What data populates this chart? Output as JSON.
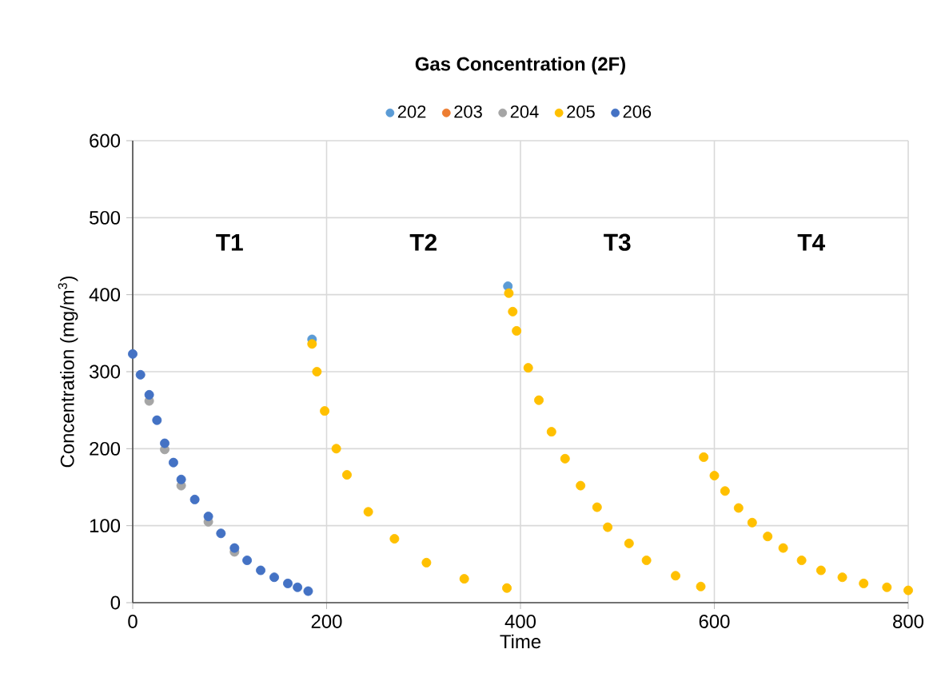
{
  "chart_data": {
    "type": "scatter",
    "title": "Gas Concentration (2F)",
    "xlabel": "Time",
    "ylabel": "Concentration (mg/m$^{3}$)",
    "xlim": [
      0,
      800
    ],
    "xticks": [
      0,
      200,
      400,
      600,
      800
    ],
    "ylim": [
      0,
      600
    ],
    "yticks": [
      0,
      100,
      200,
      300,
      400,
      500,
      600
    ],
    "grid": true,
    "legend": "top",
    "marker": "circle",
    "annotations": [
      "T1",
      "T2",
      "T3",
      "T4"
    ],
    "series": [
      {
        "name": "202",
        "color": "#5b9bd5",
        "x": [
          185,
          387
        ],
        "values": [
          342,
          411
        ]
      },
      {
        "name": "203",
        "color": "#ed7d31"
      },
      {
        "name": "204",
        "color": "#a5a5a5",
        "x": [
          17,
          33,
          50,
          78,
          105
        ],
        "values": [
          262,
          199,
          152,
          105,
          66
        ]
      },
      {
        "name": "205",
        "color": "#ffc000",
        "x": [
          185,
          190,
          198,
          210,
          221,
          243,
          270,
          303,
          342,
          386,
          388,
          392,
          396,
          408,
          419,
          432,
          446,
          462,
          479,
          490,
          512,
          530,
          560,
          586,
          589,
          600,
          611,
          625,
          639,
          655,
          671,
          690,
          710,
          732,
          754,
          778,
          800
        ],
        "values": [
          336,
          300,
          249,
          200,
          166,
          118,
          83,
          52,
          31,
          19,
          402,
          378,
          353,
          305,
          263,
          222,
          187,
          152,
          124,
          98,
          77,
          55,
          35,
          21,
          189,
          165,
          145,
          123,
          104,
          86,
          71,
          55,
          42,
          33,
          25,
          20,
          16
        ]
      },
      {
        "name": "206",
        "color": "#4472c4",
        "x": [
          0,
          8,
          17,
          25,
          33,
          42,
          50,
          64,
          78,
          91,
          105,
          118,
          132,
          146,
          160,
          170,
          181
        ],
        "values": [
          323,
          296,
          270,
          237,
          207,
          182,
          160,
          134,
          112,
          90,
          71,
          55,
          42,
          33,
          25,
          20,
          15
        ]
      }
    ]
  }
}
